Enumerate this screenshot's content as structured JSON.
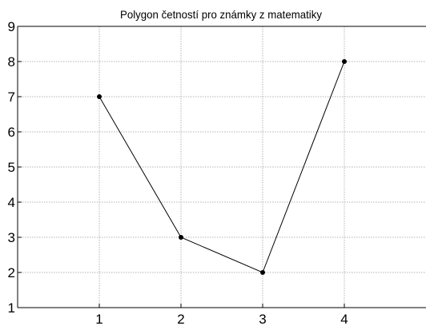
{
  "chart_data": {
    "type": "line",
    "title": "Polygon četností pro známky z matematiky",
    "xlabel": "",
    "ylabel": "",
    "x": [
      1,
      2,
      3,
      4
    ],
    "series": [
      {
        "values": [
          7,
          3,
          2,
          8
        ]
      }
    ],
    "xlim": [
      0,
      5
    ],
    "ylim": [
      1,
      9
    ],
    "xticks": [
      "1",
      "2",
      "3",
      "4"
    ],
    "yticks": [
      "1",
      "2",
      "3",
      "4",
      "5",
      "6",
      "7",
      "8",
      "9"
    ],
    "grid": true,
    "line_color": "#000000",
    "marker_color": "#000000",
    "grid_color": "#b4b4b4"
  }
}
